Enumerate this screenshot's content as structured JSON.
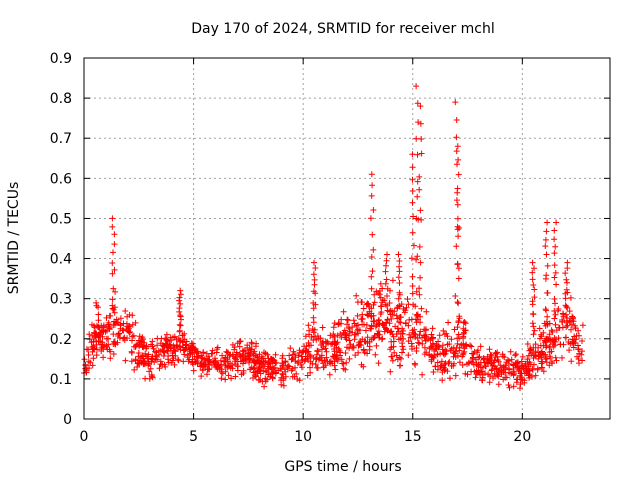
{
  "chart_data": {
    "type": "scatter",
    "title": "Day 170 of 2024, SRMTID for receiver mchl",
    "xlabel": "GPS time / hours",
    "ylabel": "SRMTID / TECUs",
    "xlim": [
      0,
      24
    ],
    "ylim": [
      0,
      0.9
    ],
    "xticks": [
      0,
      5,
      10,
      15,
      20
    ],
    "yticks": [
      0,
      0.1,
      0.2,
      0.3,
      0.4,
      0.5,
      0.6,
      0.7,
      0.8,
      0.9
    ],
    "xtick_labels": [
      "0",
      "5",
      "10",
      "15",
      "20"
    ],
    "ytick_labels": [
      "0",
      "0.1",
      "0.2",
      "0.3",
      "0.4",
      "0.5",
      "0.6",
      "0.7",
      "0.8",
      "0.9"
    ],
    "grid": true,
    "marker": "+",
    "color": "#ff0000",
    "envelope": {
      "x": [
        0.0,
        0.3,
        0.6,
        0.9,
        1.2,
        1.4,
        1.6,
        1.9,
        2.2,
        2.6,
        3.0,
        3.5,
        4.0,
        4.5,
        5.0,
        5.5,
        6.0,
        6.5,
        7.0,
        7.5,
        8.0,
        8.5,
        9.0,
        9.5,
        10.0,
        10.5,
        11.0,
        11.5,
        12.0,
        12.5,
        13.0,
        13.5,
        14.0,
        14.5,
        15.0,
        15.3,
        15.6,
        16.0,
        16.5,
        17.0,
        17.3,
        17.6,
        18.0,
        18.5,
        19.0,
        19.5,
        20.0,
        20.5,
        21.0,
        21.5,
        22.0,
        22.5,
        22.8
      ],
      "center": [
        0.13,
        0.17,
        0.22,
        0.2,
        0.22,
        0.24,
        0.21,
        0.22,
        0.19,
        0.17,
        0.15,
        0.16,
        0.17,
        0.18,
        0.16,
        0.14,
        0.14,
        0.14,
        0.15,
        0.15,
        0.13,
        0.13,
        0.12,
        0.13,
        0.16,
        0.17,
        0.16,
        0.17,
        0.2,
        0.22,
        0.24,
        0.25,
        0.24,
        0.22,
        0.2,
        0.22,
        0.18,
        0.17,
        0.16,
        0.18,
        0.2,
        0.15,
        0.14,
        0.14,
        0.13,
        0.13,
        0.12,
        0.15,
        0.17,
        0.2,
        0.22,
        0.2,
        0.18
      ],
      "spread": [
        0.06,
        0.08,
        0.1,
        0.09,
        0.12,
        0.13,
        0.1,
        0.1,
        0.09,
        0.08,
        0.07,
        0.06,
        0.06,
        0.06,
        0.05,
        0.05,
        0.05,
        0.06,
        0.06,
        0.06,
        0.06,
        0.06,
        0.06,
        0.07,
        0.08,
        0.09,
        0.08,
        0.09,
        0.11,
        0.12,
        0.14,
        0.15,
        0.14,
        0.13,
        0.12,
        0.15,
        0.11,
        0.1,
        0.09,
        0.12,
        0.13,
        0.08,
        0.07,
        0.07,
        0.06,
        0.06,
        0.06,
        0.08,
        0.1,
        0.11,
        0.12,
        0.1,
        0.08
      ]
    },
    "peaks": [
      {
        "x": 1.35,
        "y": 0.5
      },
      {
        "x": 4.4,
        "y": 0.32
      },
      {
        "x": 10.5,
        "y": 0.39
      },
      {
        "x": 13.15,
        "y": 0.61
      },
      {
        "x": 13.8,
        "y": 0.41
      },
      {
        "x": 14.4,
        "y": 0.41
      },
      {
        "x": 15.2,
        "y": 0.83
      },
      {
        "x": 15.0,
        "y": 0.66
      },
      {
        "x": 15.35,
        "y": 0.78
      },
      {
        "x": 17.0,
        "y": 0.79
      },
      {
        "x": 17.1,
        "y": 0.68
      },
      {
        "x": 20.5,
        "y": 0.39
      },
      {
        "x": 21.1,
        "y": 0.49
      },
      {
        "x": 21.5,
        "y": 0.49
      },
      {
        "x": 22.0,
        "y": 0.39
      }
    ],
    "n_points": 1500
  }
}
